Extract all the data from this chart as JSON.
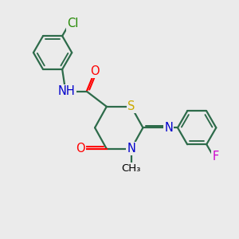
{
  "bg_color": "#ebebeb",
  "atom_colors": {
    "C": "#000000",
    "N": "#0000cc",
    "O": "#ff0000",
    "S": "#ccaa00",
    "Cl": "#228800",
    "F": "#cc00cc",
    "H": "#0000cc"
  },
  "bond_color": "#2d6b4a",
  "bond_width": 1.6,
  "font_size": 10.5
}
